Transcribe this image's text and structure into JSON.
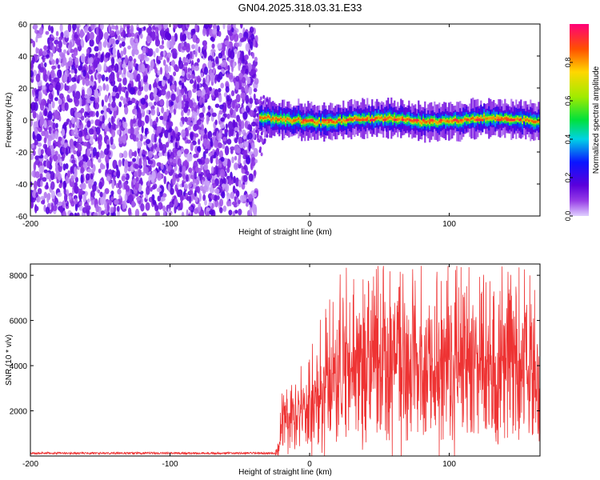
{
  "title": "GN04.2025.318.03.31.E33",
  "chart_data": [
    {
      "type": "heatmap",
      "xlabel": "Height of straight line (km)",
      "ylabel": "Frequency (Hz)",
      "xlim": [
        -200,
        165
      ],
      "ylim": [
        -60,
        60
      ],
      "x_ticks": [
        -200,
        -100,
        0,
        100
      ],
      "y_ticks": [
        -60,
        -40,
        -20,
        0,
        20,
        40,
        60
      ],
      "y_tick_labels": [
        "-60",
        "-40",
        "-20",
        "0",
        "20",
        "40",
        "60"
      ],
      "noise_region_x": [
        -200,
        -38
      ],
      "signal_center_hz": 0,
      "colorbar": {
        "label": "Normalized spectral amplitude",
        "range": [
          0,
          1
        ],
        "ticks": [
          0.0,
          0.2,
          0.4,
          0.6,
          0.8
        ],
        "tick_labels": [
          "0.0",
          "0.2",
          "0.4",
          "0.6",
          "0.8"
        ],
        "colormap": "rainbow"
      },
      "grid": false
    },
    {
      "type": "line",
      "xlabel": "Height of straight line (km)",
      "ylabel": "SNR (10 * v/v)",
      "xlim": [
        -200,
        165
      ],
      "ylim": [
        0,
        8500
      ],
      "x_ticks": [
        -200,
        -100,
        0,
        100
      ],
      "y_ticks": [
        2000,
        4000,
        6000,
        8000
      ],
      "series_color": "#ee3333",
      "profile": {
        "x": [
          -200,
          -25,
          -22,
          -20,
          -18,
          -15,
          -10,
          -5,
          0,
          5,
          10,
          15,
          20,
          30,
          50,
          70,
          100,
          120,
          140,
          165
        ],
        "y": [
          80,
          80,
          300,
          1500,
          1900,
          1800,
          1900,
          2100,
          2300,
          2600,
          2900,
          3300,
          3700,
          3900,
          4000,
          4000,
          4000,
          4000,
          3900,
          3800
        ]
      },
      "grid": false
    }
  ]
}
